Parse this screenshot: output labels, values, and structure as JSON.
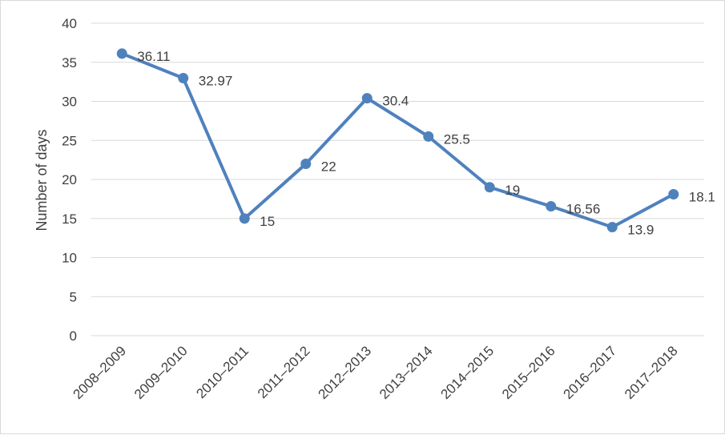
{
  "chart_data": {
    "type": "line",
    "title": "",
    "xlabel": "",
    "ylabel": "Number of days",
    "ylim": [
      0,
      40
    ],
    "yticks": [
      0,
      5,
      10,
      15,
      20,
      25,
      30,
      35,
      40
    ],
    "grid": true,
    "legend": "none",
    "categories": [
      "2008–2009",
      "2009–2010",
      "2010–2011",
      "2011–2012",
      "2012–2013",
      "2013–2014",
      "2014–2015",
      "2015–2016",
      "2016–2017",
      "2017–2018"
    ],
    "series": [
      {
        "values": [
          36.11,
          32.97,
          15,
          22,
          30.4,
          25.5,
          19,
          16.56,
          13.9,
          18.1
        ],
        "labels": [
          "36.11",
          "32.97",
          "15",
          "22",
          "30.4",
          "25.5",
          "19",
          "16.56",
          "13.9",
          "18.1"
        ],
        "color": "#4f81bd"
      }
    ],
    "colors": {
      "grid": "#d9d9d9",
      "text": "#404040",
      "line": "#4f81bd"
    }
  }
}
